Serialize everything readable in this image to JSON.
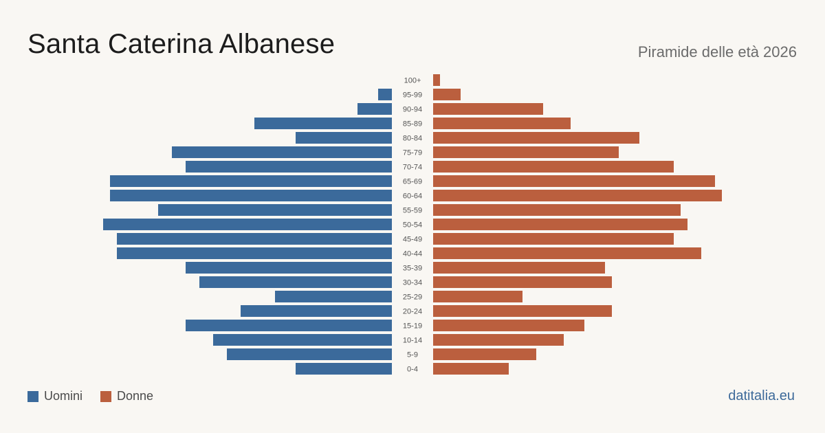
{
  "header": {
    "title": "Santa Caterina Albanese",
    "subtitle": "Piramide delle età 2026"
  },
  "legend": {
    "men_label": "Uomini",
    "women_label": "Donne"
  },
  "footer": {
    "source": "datitalia.eu"
  },
  "colors": {
    "men": "#3b6a9b",
    "women": "#bb5f3e"
  },
  "chart_data": {
    "type": "bar",
    "orientation": "horizontal-population-pyramid",
    "title": "Santa Caterina Albanese",
    "subtitle": "Piramide delle età 2026",
    "categories": [
      "100+",
      "95-99",
      "90-94",
      "85-89",
      "80-84",
      "75-79",
      "70-74",
      "65-69",
      "60-64",
      "55-59",
      "50-54",
      "45-49",
      "40-44",
      "35-39",
      "30-34",
      "25-29",
      "20-24",
      "15-19",
      "10-14",
      "5-9",
      "0-4"
    ],
    "series": [
      {
        "name": "Uomini",
        "values": [
          0,
          2,
          5,
          20,
          14,
          32,
          30,
          41,
          41,
          34,
          42,
          40,
          40,
          30,
          28,
          17,
          22,
          30,
          26,
          24,
          14
        ]
      },
      {
        "name": "Donne",
        "values": [
          1,
          4,
          16,
          20,
          30,
          27,
          35,
          41,
          42,
          36,
          37,
          35,
          39,
          25,
          26,
          13,
          26,
          22,
          19,
          15,
          11
        ]
      }
    ],
    "legend_placement": "bottom-left",
    "grid": false
  }
}
